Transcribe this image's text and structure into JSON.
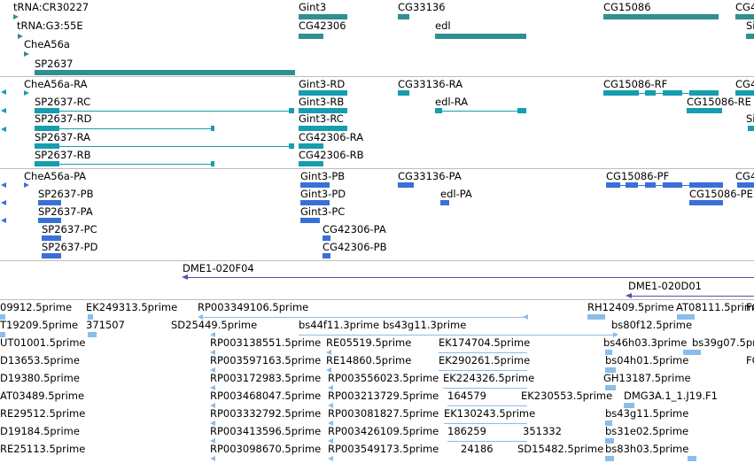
{
  "genes": {
    "labels": [
      "tRNA:CR30227",
      "tRNA:G3:55E",
      "CheA56a",
      "SP2637",
      "Gint3",
      "CG42306",
      "CG33136",
      "edl",
      "CG15086",
      "CG4",
      "Si"
    ],
    "color": "#2f8f93"
  },
  "transcripts": {
    "labels": [
      "CheA56a-RA",
      "SP2637-RC",
      "SP2637-RD",
      "SP2637-RA",
      "SP2637-RB",
      "Gint3-RD",
      "Gint3-RB",
      "Gint3-RC",
      "CG42306-RA",
      "CG42306-RB",
      "CG33136-RA",
      "edl-RA",
      "CG15086-RF",
      "CG15086-RE",
      "CG4",
      "Si"
    ],
    "color": "#169dae"
  },
  "peptides": {
    "labels": [
      "CheA56a-PA",
      "SP2637-PB",
      "SP2637-PA",
      "SP2637-PC",
      "SP2637-PD",
      "Gint3-PB",
      "Gint3-PD",
      "Gint3-PC",
      "CG42306-PA",
      "CG42306-PB",
      "CG33136-PA",
      "edl-PA",
      "CG15086-PF",
      "CG15086-PE",
      "CG4"
    ],
    "color": "#3a6fd8"
  },
  "oligos": {
    "labels": [
      "DME1-020F04",
      "DME1-020D01"
    ],
    "color": "#6a49a8"
  },
  "ests": {
    "labels": [
      "09912.5prime",
      "EK249313.5prime",
      "RP003349106.5prime",
      "RH12409.5prime",
      "AT08111.5prime",
      "FC",
      "T19209.5prime",
      "371507",
      "SD25449.5prime",
      "bs44f11.3prime",
      "bs43g11.3prime",
      "bs80f12.5prime",
      "UT01001.5prime",
      "RP003138551.5prime",
      "RE05519.5prime",
      "EK174704.5prime",
      "bs46h03.3prime",
      "bs39g07.5prime",
      "D13653.5prime",
      "RP003597163.5prime",
      "RE14860.5prime",
      "EK290261.5prime",
      "bs04h01.5prime",
      "FC",
      "D19380.5prime",
      "RP003172983.5prime",
      "RP003556023.5prime",
      "EK224326.5prime",
      "GH13187.5prime",
      "AT03489.5prime",
      "RP003468047.5prime",
      "RP003213729.5prime",
      "164579",
      "EK230553.5prime",
      "DMG3A.1_1.J19.F1",
      "RE29512.5prime",
      "RP003332792.5prime",
      "RP003081827.5prime",
      "EK130243.5prime",
      "bs43g11.5prime",
      "D19184.5prime",
      "RP003413596.5prime",
      "RP003426109.5prime",
      "186259",
      "351332",
      "bs31e02.5prime",
      "RE25113.5prime",
      "RP003098670.5prime",
      "RP003549173.5prime",
      "24186",
      "SD15482.5prime",
      "bs83h03.5prime"
    ],
    "color": "#8bbde8"
  }
}
